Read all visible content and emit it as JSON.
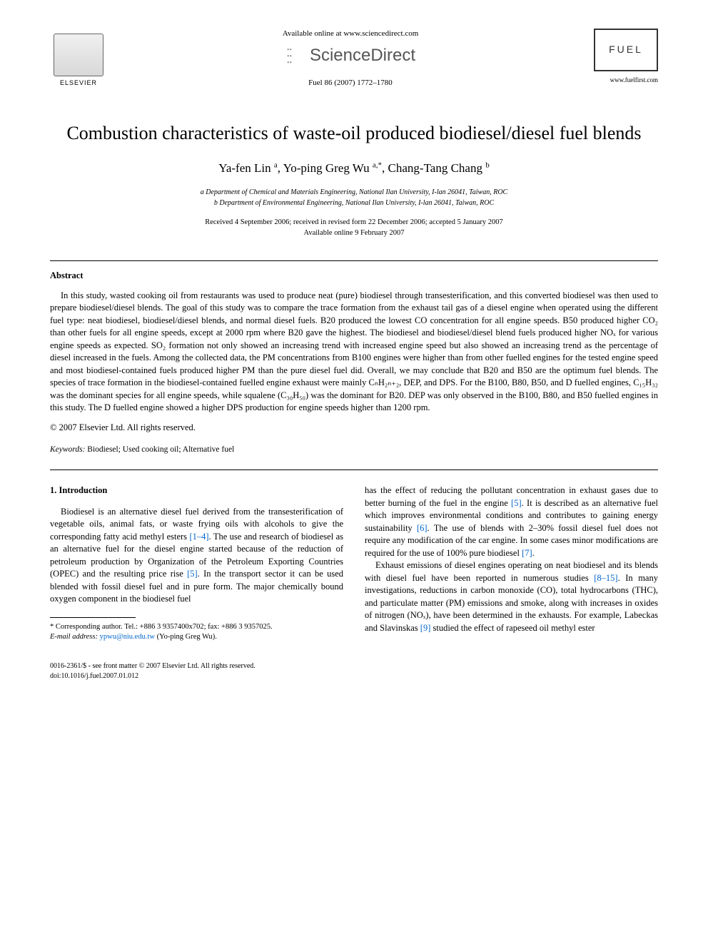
{
  "header": {
    "available_online": "Available online at www.sciencedirect.com",
    "sciencedirect": "ScienceDirect",
    "journal_ref": "Fuel 86 (2007) 1772–1780",
    "elsevier": "ELSEVIER",
    "fuel_logo": "FUEL",
    "fuel_website": "www.fuelfirst.com"
  },
  "title": "Combustion characteristics of waste-oil produced biodiesel/diesel fuel blends",
  "authors_html": "Ya-fen Lin <sup>a</sup>, Yo-ping Greg Wu <sup>a,*</sup>, Chang-Tang Chang <sup>b</sup>",
  "affiliations": {
    "a": "a Department of Chemical and Materials Engineering, National Ilan University, I-lan 26041, Taiwan, ROC",
    "b": "b Department of Environmental Engineering, National Ilan University, I-lan 26041, Taiwan, ROC"
  },
  "dates": {
    "received": "Received 4 September 2006; received in revised form 22 December 2006; accepted 5 January 2007",
    "online": "Available online 9 February 2007"
  },
  "abstract": {
    "heading": "Abstract",
    "text": "In this study, wasted cooking oil from restaurants was used to produce neat (pure) biodiesel through transesterification, and this converted biodiesel was then used to prepare biodiesel/diesel blends. The goal of this study was to compare the trace formation from the exhaust tail gas of a diesel engine when operated using the different fuel type: neat biodiesel, biodiesel/diesel blends, and normal diesel fuels. B20 produced the lowest CO concentration for all engine speeds. B50 produced higher CO₂ than other fuels for all engine speeds, except at 2000 rpm where B20 gave the highest. The biodiesel and biodiesel/diesel blend fuels produced higher NOₓ for various engine speeds as expected. SO₂ formation not only showed an increasing trend with increased engine speed but also showed an increasing trend as the percentage of diesel increased in the fuels. Among the collected data, the PM concentrations from B100 engines were higher than from other fuelled engines for the tested engine speed and most biodiesel-contained fuels produced higher PM than the pure diesel fuel did. Overall, we may conclude that B20 and B50 are the optimum fuel blends. The species of trace formation in the biodiesel-contained fuelled engine exhaust were mainly CₙH₂ₙ₊₂, DEP, and DPS. For the B100, B80, B50, and D fuelled engines, C₁₅H₃₂ was the dominant species for all engine speeds, while squalene (C₃₀H₅₀) was the dominant for B20. DEP was only observed in the B100, B80, and B50 fuelled engines in this study. The D fuelled engine showed a higher DPS production for engine speeds higher than 1200 rpm.",
    "copyright": "© 2007 Elsevier Ltd. All rights reserved."
  },
  "keywords": {
    "label": "Keywords:",
    "text": "Biodiesel; Used cooking oil; Alternative fuel"
  },
  "introduction": {
    "heading": "1. Introduction",
    "col1_p1_a": "Biodiesel is an alternative diesel fuel derived from the transesterification of vegetable oils, animal fats, or waste frying oils with alcohols to give the corresponding fatty acid methyl esters ",
    "ref_1_4": "[1–4]",
    "col1_p1_b": ". The use and research of biodiesel as an alternative fuel for the diesel engine started because of the reduction of petroleum production by Organization of the Petroleum Exporting Countries (OPEC) and the resulting price rise ",
    "ref_5a": "[5]",
    "col1_p1_c": ". In the transport sector it can be used blended with fossil diesel fuel and in pure form. The major chemically bound oxygen component in the biodiesel fuel",
    "col2_p1_a": "has the effect of reducing the pollutant concentration in exhaust gases due to better burning of the fuel in the engine ",
    "ref_5b": "[5]",
    "col2_p1_b": ". It is described as an alternative fuel which improves environmental conditions and contributes to gaining energy sustainability ",
    "ref_6": "[6]",
    "col2_p1_c": ". The use of blends with 2–30% fossil diesel fuel does not require any modification of the car engine. In some cases minor modifications are required for the use of 100% pure biodiesel ",
    "ref_7": "[7]",
    "col2_p1_d": ".",
    "col2_p2_a": "Exhaust emissions of diesel engines operating on neat biodiesel and its blends with diesel fuel have been reported in numerous studies ",
    "ref_8_15": "[8–15]",
    "col2_p2_b": ". In many investigations, reductions in carbon monoxide (CO), total hydrocarbons (THC), and particulate matter (PM) emissions and smoke, along with increases in oxides of nitrogen (NOₓ), have been determined in the exhausts. For example, Labeckas and Slavinskas ",
    "ref_9": "[9]",
    "col2_p2_c": " studied the effect of rapeseed oil methyl ester"
  },
  "footnote": {
    "corresponding": "* Corresponding author. Tel.: +886 3 9357400x702; fax: +886 3 9357025.",
    "email_label": "E-mail address:",
    "email": "ypwu@niu.edu.tw",
    "email_name": "(Yo-ping Greg Wu)."
  },
  "footer": {
    "line1": "0016-2361/$ - see front matter © 2007 Elsevier Ltd. All rights reserved.",
    "line2": "doi:10.1016/j.fuel.2007.01.012"
  }
}
